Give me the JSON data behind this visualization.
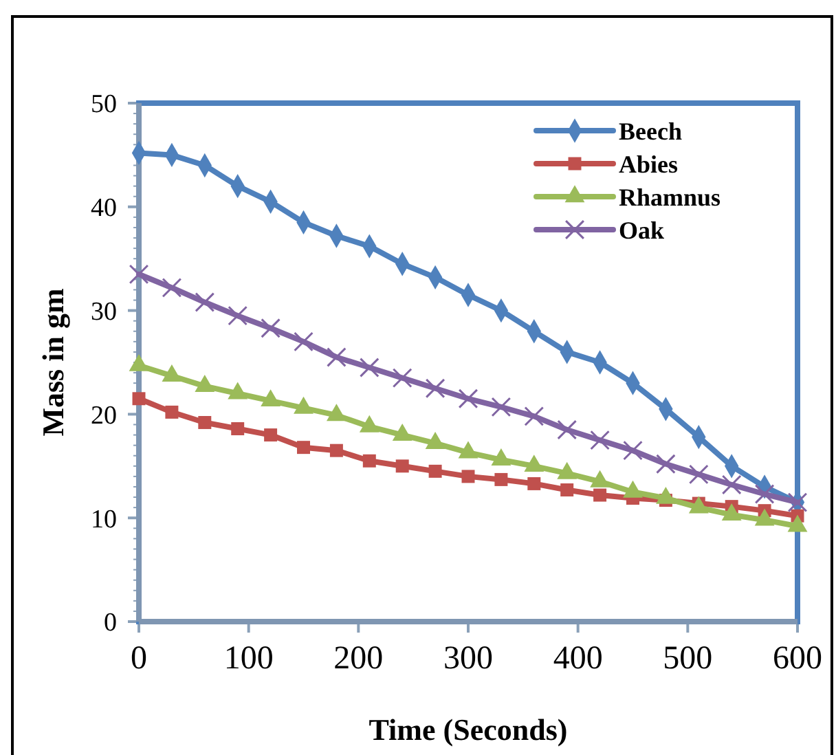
{
  "chart_data": {
    "type": "line",
    "xlabel": "Time (Seconds)",
    "ylabel": "Mass in gm",
    "x": [
      0,
      30,
      60,
      90,
      120,
      150,
      180,
      210,
      240,
      270,
      300,
      330,
      360,
      390,
      420,
      450,
      480,
      510,
      540,
      570,
      600
    ],
    "series": [
      {
        "name": "Beech",
        "color": "#4f81bd",
        "marker": "diamond",
        "values": [
          45.2,
          45,
          44,
          42,
          40.5,
          38.5,
          37.2,
          36.2,
          34.5,
          33.2,
          31.5,
          30,
          28,
          26,
          25,
          23,
          20.5,
          17.8,
          15,
          13,
          11.5
        ]
      },
      {
        "name": "Abies",
        "color": "#c0504d",
        "marker": "square",
        "values": [
          21.5,
          20.2,
          19.2,
          18.6,
          18,
          16.8,
          16.5,
          15.5,
          15,
          14.5,
          14,
          13.7,
          13.3,
          12.7,
          12.2,
          11.9,
          11.7,
          11.4,
          11.1,
          10.7,
          10.2
        ]
      },
      {
        "name": "Rhamnus",
        "color": "#9bbb59",
        "marker": "triangle",
        "values": [
          24.7,
          23.7,
          22.7,
          22,
          21.3,
          20.6,
          19.9,
          18.8,
          18,
          17.2,
          16.3,
          15.6,
          15,
          14.3,
          13.5,
          12.5,
          11.9,
          11.0,
          10.3,
          9.8,
          9.2
        ]
      },
      {
        "name": "Oak",
        "color": "#8064a2",
        "marker": "cross",
        "values": [
          33.5,
          32.2,
          30.8,
          29.5,
          28.3,
          27,
          25.5,
          24.5,
          23.5,
          22.5,
          21.5,
          20.7,
          19.8,
          18.5,
          17.5,
          16.5,
          15.2,
          14.2,
          13.2,
          12.3,
          11.5
        ]
      }
    ],
    "xlim": [
      0,
      600
    ],
    "xticks": [
      0,
      100,
      200,
      300,
      400,
      500,
      600
    ],
    "ylim": [
      0,
      50
    ],
    "yticks": [
      0,
      10,
      20,
      30,
      40,
      50
    ],
    "grid": false,
    "legend": "top right"
  }
}
